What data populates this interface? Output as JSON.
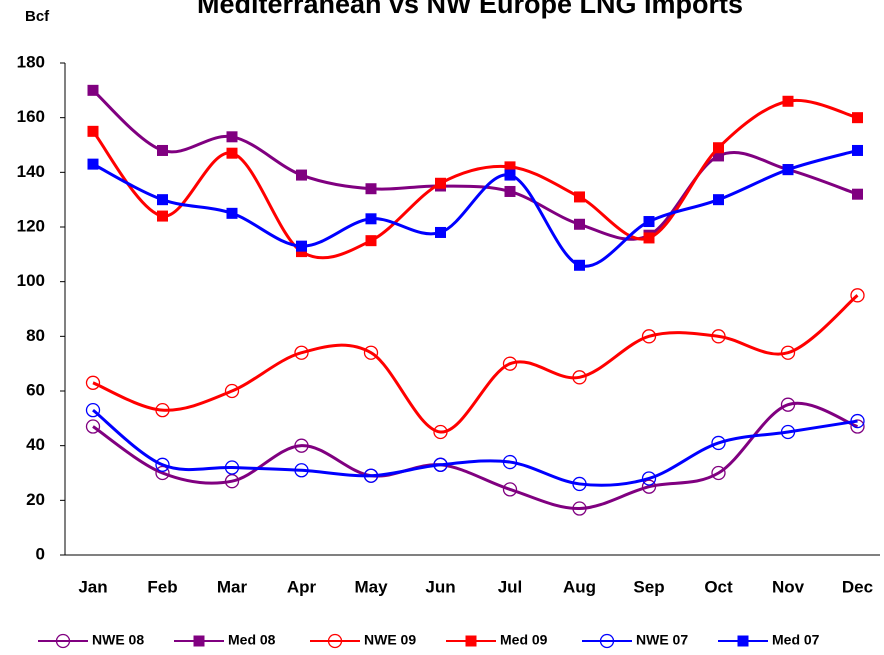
{
  "chart_data": {
    "type": "line",
    "title": "Mediterranean vs NW Europe LNG Imports",
    "y_label": "Bcf",
    "categories": [
      "Jan",
      "Feb",
      "Mar",
      "Apr",
      "May",
      "Jun",
      "Jul",
      "Aug",
      "Sep",
      "Oct",
      "Nov",
      "Dec"
    ],
    "ylim": [
      0,
      180
    ],
    "yticks": [
      0,
      20,
      40,
      60,
      80,
      100,
      120,
      140,
      160,
      180
    ],
    "smooth": true,
    "series": [
      {
        "name": "NWE 08",
        "color": "#800080",
        "marker": "circle",
        "values": [
          47,
          30,
          27,
          40,
          29,
          33,
          24,
          17,
          25,
          30,
          55,
          47
        ]
      },
      {
        "name": "Med 08",
        "color": "#800080",
        "marker": "square",
        "values": [
          170,
          148,
          153,
          139,
          134,
          135,
          133,
          121,
          117,
          146,
          141,
          132
        ]
      },
      {
        "name": "NWE 09",
        "color": "#ff0000",
        "marker": "circle",
        "values": [
          63,
          53,
          60,
          74,
          74,
          45,
          70,
          65,
          80,
          80,
          74,
          95
        ]
      },
      {
        "name": "Med 09",
        "color": "#ff0000",
        "marker": "square",
        "values": [
          155,
          124,
          147,
          111,
          115,
          136,
          142,
          131,
          116,
          149,
          166,
          160
        ]
      },
      {
        "name": "NWE 07",
        "color": "#0000ff",
        "marker": "circle",
        "values": [
          53,
          33,
          32,
          31,
          29,
          33,
          34,
          26,
          28,
          41,
          45,
          49
        ]
      },
      {
        "name": "Med 07",
        "color": "#0000ff",
        "marker": "square",
        "values": [
          143,
          130,
          125,
          113,
          123,
          118,
          139,
          106,
          122,
          130,
          141,
          148
        ]
      }
    ]
  }
}
